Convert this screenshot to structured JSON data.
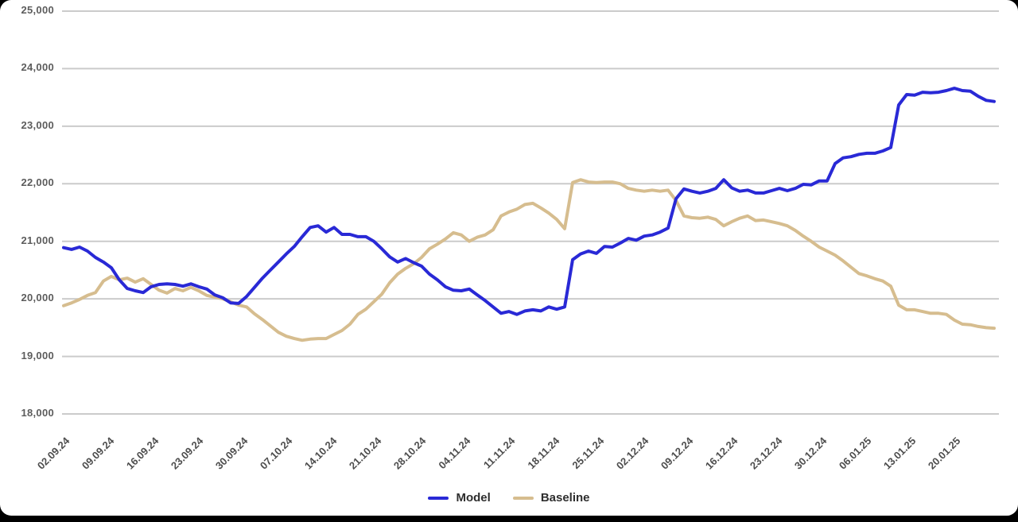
{
  "chart": {
    "background": "#ffffff",
    "page_background": "#000000",
    "grid_color": "#cbcbcb",
    "y_label_color": "#5c5c5c",
    "x_label_color": "#4d4d4d",
    "legend_text_color": "#2e2e2e"
  },
  "chart_data": {
    "type": "line",
    "title": "",
    "xlabel": "",
    "ylabel": "",
    "grid": "horizontal",
    "legend_position": "bottom",
    "ylim": [
      18000,
      25000
    ],
    "yticks": [
      25000,
      24000,
      23000,
      22000,
      21000,
      20000,
      19000,
      18000
    ],
    "ytick_labels": [
      "25,000",
      "24,000",
      "23,000",
      "22,000",
      "21,000",
      "20,000",
      "19,000",
      "18,000"
    ],
    "x_tick_labels": [
      "02.09.24",
      "09.09.24",
      "16.09.24",
      "23.09.24",
      "30.09.24",
      "07.10.24",
      "14.10.24",
      "21.10.24",
      "28.10.24",
      "04.11.24",
      "11.11.24",
      "18.11.24",
      "25.11.24",
      "02.12.24",
      "09.12.24",
      "16.12.24",
      "23.12.24",
      "30.12.24",
      "06.01.25",
      "13.01.25",
      "20.01.25"
    ],
    "series": [
      {
        "name": "Model",
        "color": "#2929d6",
        "values": [
          20890,
          20860,
          20900,
          20830,
          20720,
          20640,
          20540,
          20330,
          20180,
          20140,
          20110,
          20210,
          20250,
          20260,
          20250,
          20220,
          20260,
          20210,
          20170,
          20070,
          20020,
          19930,
          19920,
          20040,
          20200,
          20360,
          20500,
          20640,
          20780,
          20910,
          21080,
          21240,
          21270,
          21160,
          21240,
          21120,
          21120,
          21080,
          21080,
          21000,
          20870,
          20730,
          20640,
          20700,
          20630,
          20570,
          20430,
          20330,
          20210,
          20150,
          20140,
          20170,
          20070,
          19970,
          19860,
          19750,
          19780,
          19730,
          19790,
          19810,
          19790,
          19860,
          19820,
          19860,
          20680,
          20780,
          20830,
          20790,
          20910,
          20900,
          20970,
          21050,
          21020,
          21090,
          21110,
          21160,
          21230,
          21740,
          21910,
          21870,
          21840,
          21870,
          21920,
          22070,
          21930,
          21870,
          21890,
          21840,
          21840,
          21880,
          21920,
          21880,
          21920,
          21990,
          21980,
          22050,
          22050,
          22350,
          22450,
          22470,
          22510,
          22530,
          22530,
          22570,
          22630,
          23370,
          23550,
          23540,
          23590,
          23580,
          23590,
          23620,
          23660,
          23620,
          23610,
          23520,
          23450,
          23430
        ]
      },
      {
        "name": "Baseline",
        "color": "#d6bd8f",
        "values": [
          19880,
          19930,
          19990,
          20060,
          20110,
          20310,
          20390,
          20330,
          20360,
          20290,
          20350,
          20250,
          20150,
          20100,
          20180,
          20140,
          20200,
          20140,
          20060,
          20030,
          20000,
          19950,
          19890,
          19860,
          19740,
          19640,
          19530,
          19420,
          19350,
          19310,
          19280,
          19300,
          19310,
          19310,
          19380,
          19450,
          19560,
          19730,
          19820,
          19950,
          20080,
          20280,
          20430,
          20530,
          20610,
          20720,
          20870,
          20950,
          21040,
          21150,
          21110,
          21000,
          21070,
          21110,
          21200,
          21440,
          21510,
          21560,
          21640,
          21660,
          21580,
          21490,
          21380,
          21220,
          22020,
          22070,
          22030,
          22020,
          22030,
          22030,
          22000,
          21920,
          21890,
          21870,
          21890,
          21870,
          21890,
          21710,
          21440,
          21410,
          21400,
          21420,
          21380,
          21270,
          21340,
          21400,
          21440,
          21360,
          21370,
          21340,
          21310,
          21270,
          21190,
          21090,
          21000,
          20900,
          20830,
          20760,
          20660,
          20550,
          20440,
          20400,
          20350,
          20310,
          20220,
          19890,
          19810,
          19810,
          19780,
          19750,
          19750,
          19730,
          19630,
          19560,
          19550,
          19520,
          19500,
          19490
        ]
      }
    ]
  }
}
